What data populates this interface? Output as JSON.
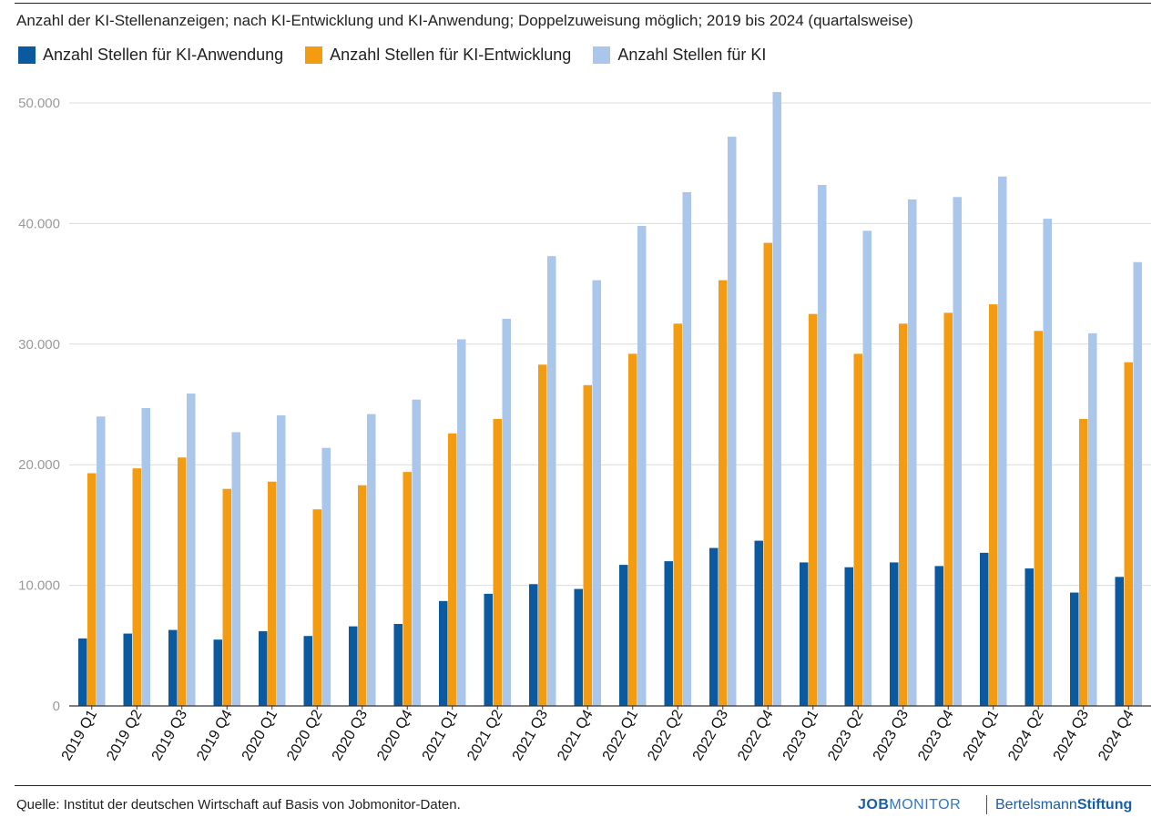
{
  "title": "Anzahl der KI-Stellenanzeigen; nach KI-Entwicklung und KI-Anwendung; Doppelzuweisung möglich; 2019 bis 2024 (quartalsweise)",
  "source": "Quelle: Institut der deutschen Wirtschaft auf Basis von Jobmonitor-Daten.",
  "logos": {
    "job": "JOB",
    "monitor": "MONITOR",
    "bertelsmann": "Bertelsmann",
    "stiftung": "Stiftung"
  },
  "colors": {
    "anwendung": "#0b5aa0",
    "entwicklung": "#f39c12",
    "ki": "#aac6ea",
    "grid": "#dcdcdc",
    "axis": "#333333"
  },
  "chart_data": {
    "type": "bar",
    "title": "Anzahl der KI-Stellenanzeigen; nach KI-Entwicklung und KI-Anwendung; Doppelzuweisung möglich; 2019 bis 2024 (quartalsweise)",
    "xlabel": "",
    "ylabel": "",
    "ylim": [
      0,
      50000
    ],
    "yticks": [
      0,
      10000,
      20000,
      30000,
      40000,
      50000
    ],
    "ytick_labels": [
      "0",
      "10.000",
      "20.000",
      "30.000",
      "40.000",
      "50.000"
    ],
    "grid": true,
    "legend_position": "top-left",
    "categories": [
      "2019 Q1",
      "2019 Q2",
      "2019 Q3",
      "2019 Q4",
      "2020 Q1",
      "2020 Q2",
      "2020 Q3",
      "2020 Q4",
      "2021 Q1",
      "2021 Q2",
      "2021 Q3",
      "2021 Q4",
      "2022 Q1",
      "2022 Q2",
      "2022 Q3",
      "2022 Q4",
      "2023 Q1",
      "2023 Q2",
      "2023 Q3",
      "2023 Q4",
      "2024 Q1",
      "2024 Q2",
      "2024 Q3",
      "2024 Q4"
    ],
    "series": [
      {
        "name": "Anzahl Stellen für KI-Anwendung",
        "color": "#0b5aa0",
        "values": [
          5600,
          6000,
          6300,
          5500,
          6200,
          5800,
          6600,
          6800,
          8700,
          9300,
          10100,
          9700,
          11700,
          12000,
          13100,
          13700,
          11900,
          11500,
          11900,
          11600,
          12700,
          11400,
          9400,
          10700
        ]
      },
      {
        "name": "Anzahl Stellen für KI-Entwicklung",
        "color": "#f39c12",
        "values": [
          19300,
          19700,
          20600,
          18000,
          18600,
          16300,
          18300,
          19400,
          22600,
          23800,
          28300,
          26600,
          29200,
          31700,
          35300,
          38400,
          32500,
          29200,
          31700,
          32600,
          33300,
          31100,
          23800,
          28500
        ]
      },
      {
        "name": "Anzahl Stellen für KI",
        "color": "#aac6ea",
        "values": [
          24000,
          24700,
          25900,
          22700,
          24100,
          21400,
          24200,
          25400,
          30400,
          32100,
          37300,
          35300,
          39800,
          42600,
          47200,
          50900,
          43200,
          39400,
          42000,
          42200,
          43900,
          40400,
          30900,
          36800
        ]
      }
    ]
  }
}
